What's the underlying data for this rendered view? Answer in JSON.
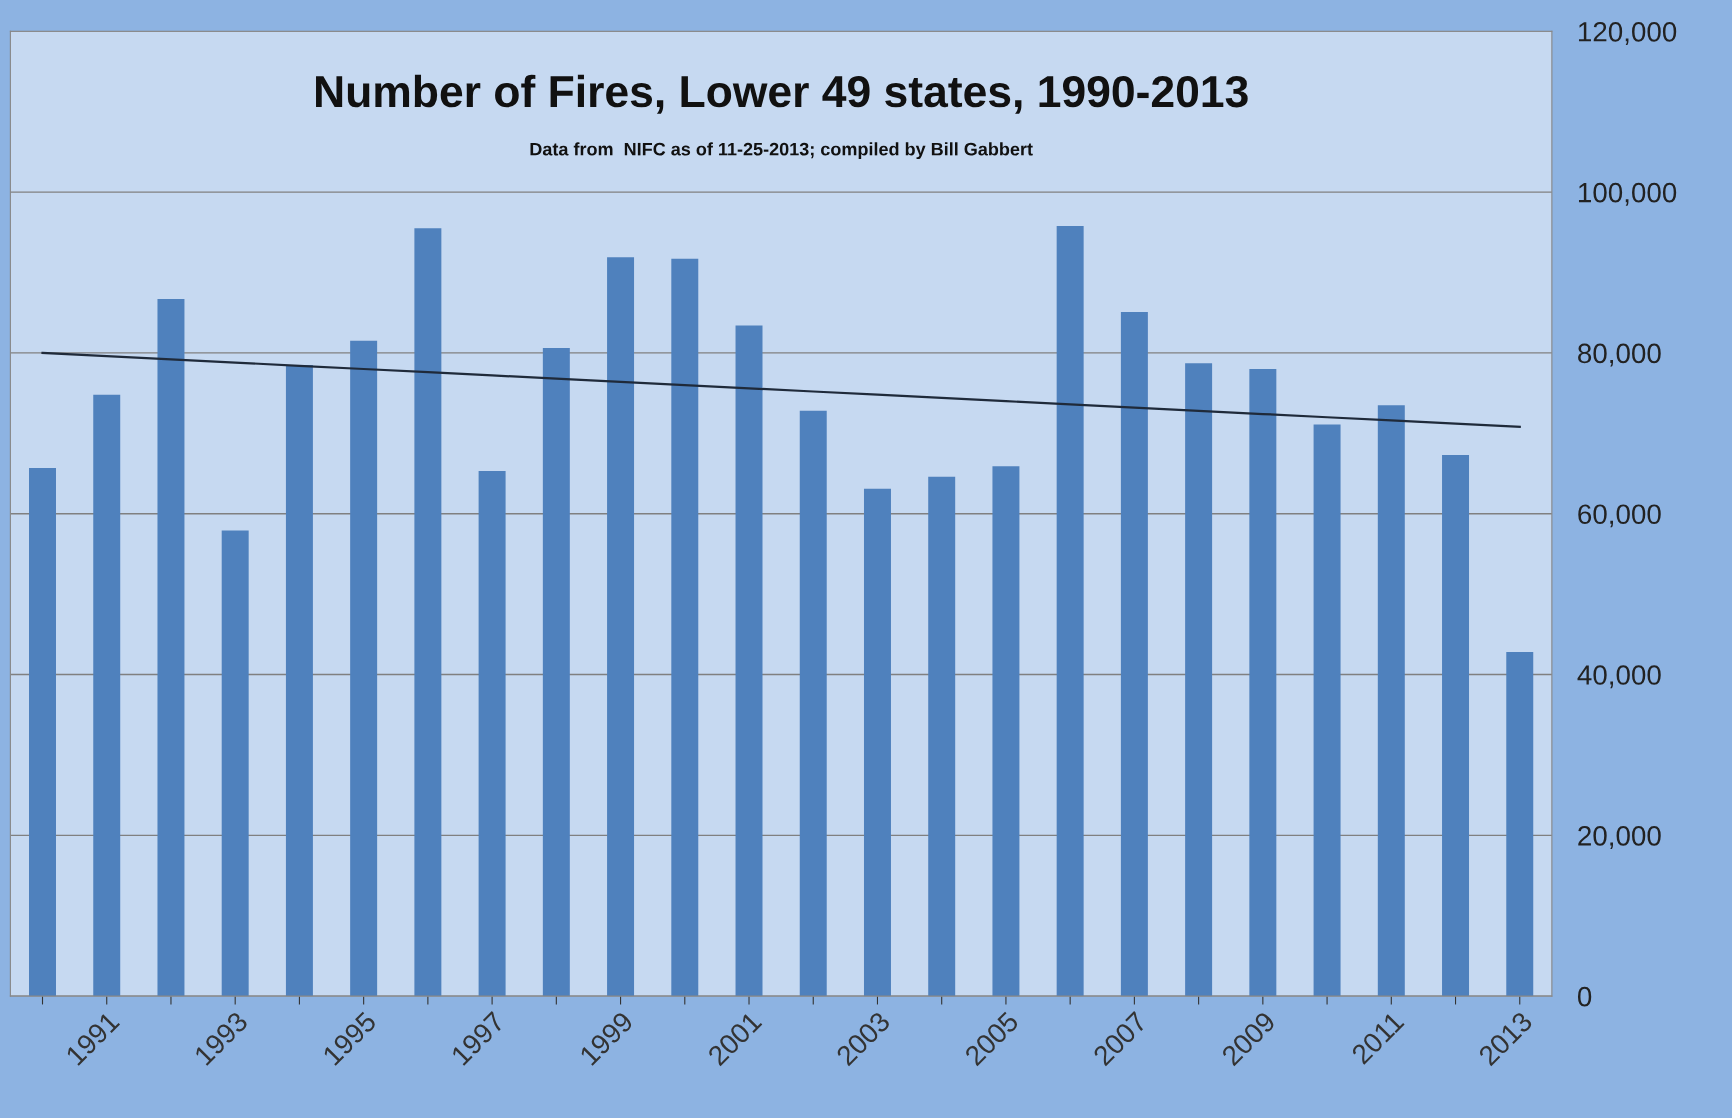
{
  "chart_data": {
    "type": "bar",
    "title": "Number of Fires, Lower 49 states, 1990-2013",
    "subtitle": "Data from  NIFC as of 11-25-2013; compiled by Bill Gabbert",
    "categories": [
      null,
      "1991",
      null,
      "1993",
      null,
      "1995",
      null,
      "1997",
      null,
      "1999",
      null,
      "2001",
      null,
      "2003",
      null,
      "2005",
      null,
      "2007",
      null,
      "2009",
      null,
      "2011",
      null,
      "2013"
    ],
    "series": [
      {
        "color": "#4f81bd",
        "values": [
          65700,
          74800,
          86700,
          57900,
          78500,
          81500,
          95500,
          65300,
          80600,
          91900,
          91700,
          83400,
          72800,
          63100,
          64600,
          65900,
          95800,
          85100,
          78700,
          78000,
          71100,
          73500,
          67300,
          42800
        ]
      },
      {
        "type": "line",
        "color": "#1f2a3a",
        "values": [
          80000,
          79600,
          79200,
          78800,
          78400,
          78000,
          77600,
          77200,
          76800,
          76400,
          76000,
          75600,
          75200,
          74800,
          74400,
          74000,
          73600,
          73200,
          72800,
          72400,
          72000,
          71600,
          71200,
          70800
        ]
      }
    ],
    "ylim": [
      0,
      120000
    ],
    "yticks": [
      {
        "value": 0,
        "label": "0"
      },
      {
        "value": 20000,
        "label": "20,000"
      },
      {
        "value": 40000,
        "label": "40,000"
      },
      {
        "value": 60000,
        "label": "60,000"
      },
      {
        "value": 80000,
        "label": "80,000"
      },
      {
        "value": 100000,
        "label": "100,000"
      },
      {
        "value": 120000,
        "label": "120,000"
      }
    ],
    "grid": "y",
    "legend": false
  }
}
